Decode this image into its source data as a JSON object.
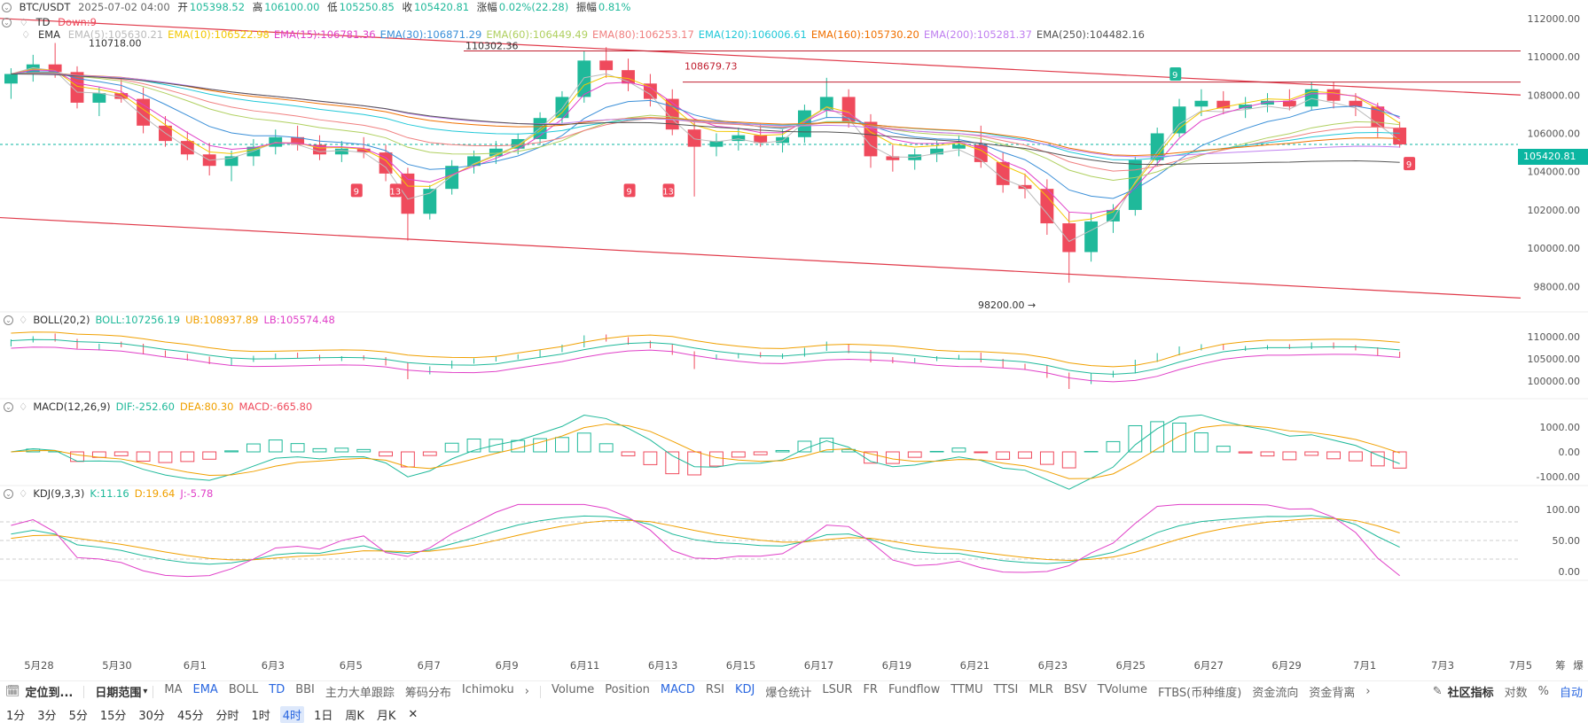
{
  "header": {
    "pair": "BTC/USDT",
    "datetime": "2025-07-02 04:00",
    "open_label": "开",
    "open": "105398.52",
    "high_label": "高",
    "high": "106100.00",
    "low_label": "低",
    "low": "105250.85",
    "close_label": "收",
    "close": "105420.81",
    "change_label": "涨幅",
    "change": "0.02%(22.28)",
    "amp_label": "振幅",
    "amp": "0.81%"
  },
  "td": {
    "label": "TD",
    "value": "Down:9"
  },
  "ema": {
    "label": "EMA",
    "items": [
      {
        "text": "EMA(5):105630.21",
        "color": "#bbbbbb"
      },
      {
        "text": "EMA(10):106522.98",
        "color": "#f2c700"
      },
      {
        "text": "EMA(15):106781.36",
        "color": "#e040c8"
      },
      {
        "text": "EMA(30):106871.29",
        "color": "#3a8fd8"
      },
      {
        "text": "EMA(60):106449.49",
        "color": "#b0d060"
      },
      {
        "text": "EMA(80):106253.17",
        "color": "#f08080"
      },
      {
        "text": "EMA(120):106006.61",
        "color": "#20c8d8"
      },
      {
        "text": "EMA(160):105730.20",
        "color": "#f07000"
      },
      {
        "text": "EMA(200):105281.37",
        "color": "#c080f0"
      },
      {
        "text": "EMA(250):104482.16",
        "color": "#555555"
      }
    ]
  },
  "boll": {
    "label": "BOLL(20,2)",
    "mid": "BOLL:107256.19",
    "ub": "UB:108937.89",
    "lb": "LB:105574.48"
  },
  "macd": {
    "label": "MACD(12,26,9)",
    "dif": "DIF:-252.60",
    "dea": "DEA:80.30",
    "macd": "MACD:-665.80"
  },
  "kdj": {
    "label": "KDJ(9,3,3)",
    "k": "K:11.16",
    "d": "D:19.64",
    "j": "J:-5.78"
  },
  "price_tag": "105420.81",
  "annotations": {
    "high_left": "110718.00",
    "high_mid": "110302.36",
    "level": "108679.73",
    "low": "98200.00"
  },
  "y_axis_main": [
    "112000.00",
    "110000.00",
    "108000.00",
    "106000.00",
    "104000.00",
    "102000.00",
    "100000.00",
    "98000.00"
  ],
  "y_axis_boll": [
    "110000.00",
    "105000.00",
    "100000.00"
  ],
  "y_axis_macd": [
    "1000.00",
    "0.00",
    "-1000.00"
  ],
  "y_axis_kdj": [
    "100.00",
    "50.00",
    "0.00"
  ],
  "x_axis": [
    "5月28",
    "5月30",
    "6月1",
    "6月3",
    "6月5",
    "6月7",
    "6月9",
    "6月11",
    "6月13",
    "6月15",
    "6月17",
    "6月19",
    "6月21",
    "6月23",
    "6月25",
    "6月27",
    "6月29",
    "7月1",
    "7月3",
    "7月5"
  ],
  "x_right": [
    "筹",
    "爆"
  ],
  "toolbar": {
    "locate": "定位到...",
    "range": "日期范围",
    "main_ind": [
      "MA",
      "EMA",
      "BOLL",
      "TD",
      "BBI",
      "主力大单跟踪",
      "筹码分布",
      "Ichimoku"
    ],
    "sub_ind": [
      "Volume",
      "Position",
      "MACD",
      "RSI",
      "KDJ",
      "爆仓统计",
      "LSUR",
      "FR",
      "Fundflow",
      "TTMU",
      "TTSI",
      "MLR",
      "BSV",
      "TVolume",
      "FTBS(币种维度)",
      "资金流向",
      "资金背离"
    ],
    "right": [
      "社区指标",
      "对数",
      "%",
      "自动"
    ]
  },
  "timeframes": [
    "1分",
    "3分",
    "5分",
    "15分",
    "30分",
    "45分",
    "分时",
    "1时",
    "4时",
    "1日",
    "周K",
    "月K"
  ],
  "timeframe_selected": "4时",
  "chart_data": {
    "type": "candlestick",
    "title": "BTC/USDT 4时",
    "x_range": [
      "2025-05-27",
      "2025-07-05"
    ],
    "ylim": [
      97000,
      112500
    ],
    "candles_ohlc_approx": [
      [
        108600,
        109400,
        107800,
        109100
      ],
      [
        109100,
        110100,
        108700,
        109600
      ],
      [
        109600,
        110718,
        108900,
        109200
      ],
      [
        109200,
        109500,
        107300,
        107600
      ],
      [
        107600,
        108400,
        106900,
        108100
      ],
      [
        108100,
        108900,
        107600,
        107800
      ],
      [
        107800,
        108400,
        106000,
        106400
      ],
      [
        106400,
        106900,
        105300,
        105600
      ],
      [
        105600,
        106100,
        104600,
        104900
      ],
      [
        104900,
        105500,
        103800,
        104300
      ],
      [
        104300,
        105100,
        103500,
        104800
      ],
      [
        104800,
        105700,
        104300,
        105300
      ],
      [
        105300,
        106200,
        104900,
        105800
      ],
      [
        105800,
        106400,
        105100,
        105400
      ],
      [
        105400,
        105900,
        104600,
        104900
      ],
      [
        104900,
        105600,
        104500,
        105200
      ],
      [
        105200,
        105800,
        104700,
        105000
      ],
      [
        105000,
        105400,
        103500,
        103900
      ],
      [
        103900,
        104200,
        100400,
        101800
      ],
      [
        101800,
        103300,
        101500,
        103100
      ],
      [
        103100,
        104600,
        102800,
        104300
      ],
      [
        104300,
        105100,
        103900,
        104800
      ],
      [
        104800,
        105600,
        104400,
        105200
      ],
      [
        105200,
        106000,
        104900,
        105700
      ],
      [
        105700,
        107100,
        105400,
        106800
      ],
      [
        106800,
        108200,
        106500,
        107900
      ],
      [
        107900,
        110300,
        107600,
        109800
      ],
      [
        109800,
        110500,
        108900,
        109300
      ],
      [
        109300,
        109900,
        108200,
        108600
      ],
      [
        108600,
        109100,
        107400,
        107800
      ],
      [
        107800,
        108300,
        105900,
        106200
      ],
      [
        106200,
        106700,
        102700,
        105300
      ],
      [
        105300,
        106000,
        104800,
        105600
      ],
      [
        105600,
        106300,
        105100,
        105900
      ],
      [
        105900,
        106500,
        105300,
        105500
      ],
      [
        105500,
        106200,
        105000,
        105800
      ],
      [
        105800,
        107500,
        105500,
        107200
      ],
      [
        107200,
        108900,
        106800,
        107900
      ],
      [
        107900,
        108300,
        106300,
        106600
      ],
      [
        106600,
        107000,
        104200,
        104800
      ],
      [
        104800,
        105400,
        104000,
        104600
      ],
      [
        104600,
        105200,
        104100,
        104900
      ],
      [
        104900,
        105600,
        104500,
        105200
      ],
      [
        105200,
        105900,
        104800,
        105400
      ],
      [
        105400,
        106400,
        104200,
        104500
      ],
      [
        104500,
        105000,
        102900,
        103300
      ],
      [
        103300,
        103900,
        102600,
        103100
      ],
      [
        103100,
        103600,
        100700,
        101300
      ],
      [
        101300,
        101900,
        98200,
        99800
      ],
      [
        99800,
        101800,
        99300,
        101400
      ],
      [
        101400,
        102300,
        100800,
        102000
      ],
      [
        102000,
        104800,
        101700,
        104600
      ],
      [
        104600,
        106300,
        104300,
        106000
      ],
      [
        106000,
        107800,
        105800,
        107400
      ],
      [
        107400,
        108300,
        106900,
        107700
      ],
      [
        107700,
        108200,
        107000,
        107300
      ],
      [
        107300,
        107900,
        106800,
        107500
      ],
      [
        107500,
        108100,
        107100,
        107700
      ],
      [
        107700,
        108300,
        107200,
        107400
      ],
      [
        107400,
        108700,
        107200,
        108300
      ],
      [
        108300,
        108700,
        107300,
        107700
      ],
      [
        107700,
        108100,
        106900,
        107400
      ],
      [
        107400,
        107600,
        105800,
        106300
      ],
      [
        106300,
        106600,
        105250,
        105420
      ]
    ],
    "ema_last": {
      "EMA(5)": 105630.21,
      "EMA(10)": 106522.98,
      "EMA(15)": 106781.36,
      "EMA(30)": 106871.29,
      "EMA(60)": 106449.49,
      "EMA(80)": 106253.17,
      "EMA(120)": 106006.61,
      "EMA(160)": 105730.2,
      "EMA(200)": 105281.37,
      "EMA(250)": 104482.16
    },
    "trendlines": [
      {
        "from": [
          "2025-05-27",
          112000
        ],
        "to": [
          "2025-07-05",
          108000
        ],
        "color": "#e03a4a"
      },
      {
        "from": [
          "2025-05-27",
          101600
        ],
        "to": [
          "2025-07-05",
          97400
        ],
        "color": "#e03a4a"
      },
      {
        "level": 110302.36,
        "color": "#c02030"
      },
      {
        "level": 108679.73,
        "color": "#c02030"
      }
    ],
    "td_marks": [
      {
        "date": "2025-06-05",
        "label": "9"
      },
      {
        "date": "2025-06-06",
        "label": "13"
      },
      {
        "date": "2025-06-12",
        "label": "9"
      },
      {
        "date": "2025-06-13",
        "label": "13"
      },
      {
        "date": "2025-06-26",
        "label": "9"
      },
      {
        "date": "2025-07-02",
        "label": "9"
      }
    ],
    "boll_last": {
      "mid": 107256.19,
      "ub": 108937.89,
      "lb": 105574.48
    },
    "macd_last": {
      "dif": -252.6,
      "dea": 80.3,
      "macd": -665.8
    },
    "kdj_last": {
      "k": 11.16,
      "d": 19.64,
      "j": -5.78
    },
    "colors": {
      "up": "#1fb99a",
      "down": "#ef4a5c"
    }
  }
}
